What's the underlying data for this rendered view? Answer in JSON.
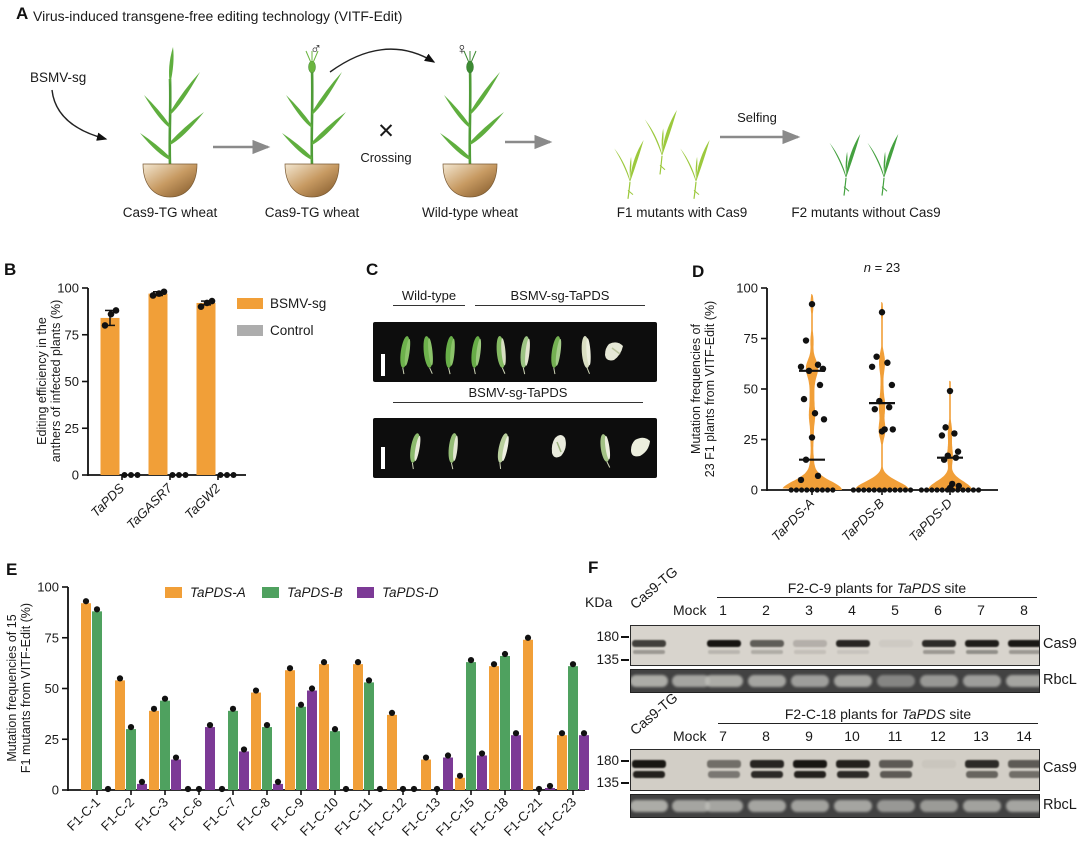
{
  "panels": {
    "a": "A",
    "b": "B",
    "c": "C",
    "d": "D",
    "e": "E",
    "f": "F"
  },
  "panel_a": {
    "title": "Virus-induced transgene-free editing technology (VITF-Edit)",
    "bsmv_label": "BSMV-sg",
    "male_symbol": "♂",
    "female_symbol": "♀",
    "cross_symbol": "✕",
    "crossing_label": "Crossing",
    "selfing_label": "Selfing",
    "plant1_label": "Cas9-TG wheat",
    "plant2_label": "Cas9-TG wheat",
    "plant3_label": "Wild-type wheat",
    "f1_label": "F1 mutants with Cas9",
    "f2_label": "F2 mutants without Cas9"
  },
  "panel_c": {
    "label_wildtype": "Wild-type",
    "label_bsmv_top": "BSMV-sg-TaPDS",
    "label_bsmv_bottom": "BSMV-sg-TaPDS"
  },
  "panel_f": {
    "kda_label": "KDa",
    "blots": [
      {
        "lane_control": "Cas9-TG",
        "lane_mock": "Mock",
        "header_pre": "F2-C-9 plants for ",
        "header_gene": "TaPDS",
        "header_post": " site",
        "lanes": [
          "1",
          "2",
          "3",
          "4",
          "5",
          "6",
          "7",
          "8"
        ],
        "marker_high": "180",
        "marker_low": "135",
        "label_cas9": "Cas9",
        "label_rbcl": "RbcL",
        "bands": [
          [
            0.75,
            0.3
          ],
          [
            0,
            0
          ],
          [
            0.97,
            0.15
          ],
          [
            0.6,
            0.2
          ],
          [
            0.18,
            0.1
          ],
          [
            0.88,
            0.08
          ],
          [
            0.05,
            0
          ],
          [
            0.85,
            0.3
          ],
          [
            0.92,
            0.35
          ],
          [
            0.95,
            0.3
          ]
        ],
        "rbcl": [
          0.85,
          0.8,
          0.85,
          0.8,
          0.75,
          0.8,
          0.55,
          0.7,
          0.75,
          0.8
        ]
      },
      {
        "lane_control": "Cas9-TG",
        "lane_mock": "Mock",
        "header_pre": "F2-C-18 plants for ",
        "header_gene": "TaPDS",
        "header_post": " site",
        "lanes": [
          "7",
          "8",
          "9",
          "10",
          "11",
          "12",
          "13",
          "14"
        ],
        "marker_high": "180",
        "marker_low": "135",
        "label_cas9": "Cas9",
        "label_rbcl": "RbcL",
        "bands": [
          [
            0.95,
            0.9
          ],
          [
            0,
            0
          ],
          [
            0.5,
            0.45
          ],
          [
            0.88,
            0.85
          ],
          [
            0.95,
            0.9
          ],
          [
            0.9,
            0.85
          ],
          [
            0.6,
            0.6
          ],
          [
            0.04,
            0
          ],
          [
            0.85,
            0.55
          ],
          [
            0.6,
            0.5
          ]
        ],
        "rbcl": [
          0.85,
          0.8,
          0.8,
          0.8,
          0.78,
          0.8,
          0.7,
          0.72,
          0.78,
          0.8
        ]
      }
    ]
  },
  "chart_data": [
    {
      "id": "B",
      "type": "bar",
      "ylabel_lines": [
        "Editing efficiency in the",
        "anthers of infected plants (%)"
      ],
      "categories": [
        "TaPDS",
        "TaGASR7",
        "TaGW2"
      ],
      "categories_italic": true,
      "series": [
        {
          "name": "BSMV-sg",
          "color": "#F19F38",
          "values": [
            84,
            97,
            92
          ],
          "points": [
            [
              80,
              86,
              88
            ],
            [
              96,
              97,
              98
            ],
            [
              90,
              92,
              93
            ]
          ],
          "errors": [
            4,
            1,
            1
          ]
        },
        {
          "name": "Control",
          "color": "#ADADAD",
          "values": [
            0,
            0,
            0
          ],
          "points": [
            [
              0,
              0,
              0
            ],
            [
              0,
              0,
              0
            ],
            [
              0,
              0,
              0
            ]
          ]
        }
      ],
      "ylim": [
        0,
        100
      ],
      "yticks": [
        0,
        25,
        50,
        75,
        100
      ],
      "legend_position": "right",
      "grid": false
    },
    {
      "id": "D",
      "type": "violin",
      "title_prefix_italic": "n",
      "title_suffix": " = 23",
      "ylabel_lines": [
        "Mutation frequencies of",
        "23 F1 plants from VITF-Edit (%)"
      ],
      "categories": [
        "TaPDS-A",
        "TaPDS-B",
        "TaPDS-D"
      ],
      "categories_italic": true,
      "color": "#F19F38",
      "points": [
        [
          92,
          74,
          62,
          61,
          60,
          59,
          52,
          45,
          38,
          35,
          26,
          15,
          7,
          5,
          0,
          0,
          0,
          0,
          0,
          0,
          0,
          0,
          0
        ],
        [
          88,
          66,
          63,
          61,
          52,
          44,
          41,
          40,
          30,
          30,
          29,
          0,
          0,
          0,
          0,
          0,
          0,
          0,
          0,
          0,
          0,
          0,
          0
        ],
        [
          49,
          31,
          28,
          27,
          19,
          17,
          16,
          15,
          3,
          2,
          1,
          0,
          0,
          0,
          0,
          0,
          0,
          0,
          0,
          0,
          0,
          0,
          0
        ]
      ],
      "median_lines": [
        [
          59,
          15
        ],
        [
          43
        ],
        [
          16
        ]
      ],
      "ylim": [
        0,
        100
      ],
      "yticks": [
        0,
        25,
        50,
        75,
        100
      ],
      "grid": false
    },
    {
      "id": "E",
      "type": "grouped_bar",
      "ylabel_lines": [
        "Mutation frequencies of 15",
        "F1 mutants from VITF-Edit (%)"
      ],
      "categories": [
        "F1-C-1",
        "F1-C-2",
        "F1-C-3",
        "F1-C-6",
        "F1-C-7",
        "F1-C-8",
        "F1-C-9",
        "F1-C-10",
        "F1-C-11",
        "F1-C-12",
        "F1-C-13",
        "F1-C-15",
        "F1-C-18",
        "F1-C-21",
        "F1-C-23"
      ],
      "series": [
        {
          "name": "TaPDS-A",
          "color": "#F19F38",
          "values": [
            92,
            54,
            39,
            0,
            0,
            48,
            59,
            62,
            62,
            37,
            15,
            6,
            61,
            74,
            27
          ]
        },
        {
          "name": "TaPDS-B",
          "color": "#4FA15F",
          "values": [
            88,
            30,
            44,
            0,
            39,
            31,
            41,
            29,
            53,
            0,
            0,
            63,
            66,
            0,
            61
          ]
        },
        {
          "name": "TaPDS-D",
          "color": "#7C3A96",
          "values": [
            0,
            3,
            15,
            31,
            19,
            3,
            49,
            0,
            0,
            0,
            16,
            17,
            27,
            1,
            27
          ]
        }
      ],
      "ylim": [
        0,
        100
      ],
      "yticks": [
        0,
        25,
        50,
        75,
        100
      ],
      "legend_position": "top",
      "legend_italic": true,
      "grid": false
    }
  ]
}
